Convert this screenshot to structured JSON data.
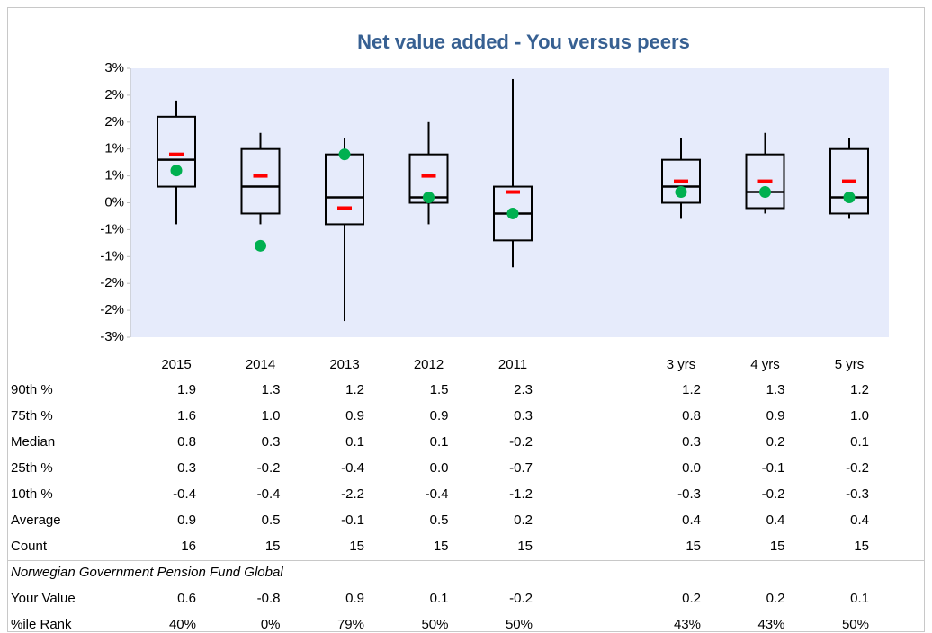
{
  "chart_data": {
    "type": "box",
    "title": "Net value added - You versus peers",
    "categories": [
      "2015",
      "2014",
      "2013",
      "2012",
      "2011",
      null,
      "3 yrs",
      "4 yrs",
      "5 yrs"
    ],
    "ylim": [
      -2.5,
      2.5
    ],
    "yticks": [
      {
        "value": 2.5,
        "label": "3%"
      },
      {
        "value": 2.0,
        "label": "2%"
      },
      {
        "value": 1.5,
        "label": "2%"
      },
      {
        "value": 1.0,
        "label": "1%"
      },
      {
        "value": 0.5,
        "label": "1%"
      },
      {
        "value": 0,
        "label": "0%"
      },
      {
        "value": -0.5,
        "label": "-1%"
      },
      {
        "value": -1.0,
        "label": "-1%"
      },
      {
        "value": -1.5,
        "label": "-2%"
      },
      {
        "value": -2.0,
        "label": "-2%"
      },
      {
        "value": -2.5,
        "label": "-3%"
      }
    ],
    "background": "#e6ebfb",
    "series": [
      {
        "name": "90th %",
        "values": [
          1.9,
          1.3,
          1.2,
          1.5,
          2.3,
          null,
          1.2,
          1.3,
          1.2
        ]
      },
      {
        "name": "75th %",
        "values": [
          1.6,
          1.0,
          0.9,
          0.9,
          0.3,
          null,
          0.8,
          0.9,
          1.0
        ],
        "value_labels": [
          "1.6",
          "1.0",
          "0.9",
          "0.9",
          "0.3",
          null,
          "0.8",
          "0.9",
          "1.0"
        ]
      },
      {
        "name": "Median",
        "values": [
          0.8,
          0.3,
          0.1,
          0.1,
          -0.2,
          null,
          0.3,
          0.2,
          0.1
        ]
      },
      {
        "name": "25th %",
        "values": [
          0.3,
          -0.2,
          -0.4,
          0.0,
          -0.7,
          null,
          0.0,
          -0.1,
          -0.2
        ],
        "value_labels": [
          "0.3",
          "-0.2",
          "-0.4",
          "0.0",
          "-0.7",
          null,
          "0.0",
          "-0.1",
          "-0.2"
        ]
      },
      {
        "name": "10th %",
        "values": [
          -0.4,
          -0.4,
          -2.2,
          -0.4,
          -1.2,
          null,
          -0.3,
          -0.2,
          -0.3
        ]
      },
      {
        "name": "Average",
        "color": "#ff0000",
        "values": [
          0.9,
          0.5,
          -0.1,
          0.5,
          0.2,
          null,
          0.4,
          0.4,
          0.4
        ]
      },
      {
        "name": "Count",
        "values": [
          16,
          15,
          15,
          15,
          15,
          null,
          15,
          15,
          15
        ]
      },
      {
        "name": "Your Value",
        "color": "#00b050",
        "values": [
          0.6,
          -0.8,
          0.9,
          0.1,
          -0.2,
          null,
          0.2,
          0.2,
          0.1
        ]
      },
      {
        "name": "%ile Rank",
        "values": [
          40,
          0,
          79,
          50,
          50,
          null,
          43,
          43,
          50
        ],
        "value_labels": [
          "40%",
          "0%",
          "79%",
          "50%",
          "50%",
          null,
          "43%",
          "43%",
          "50%"
        ]
      }
    ],
    "subject": "Norwegian Government Pension Fund Global"
  }
}
